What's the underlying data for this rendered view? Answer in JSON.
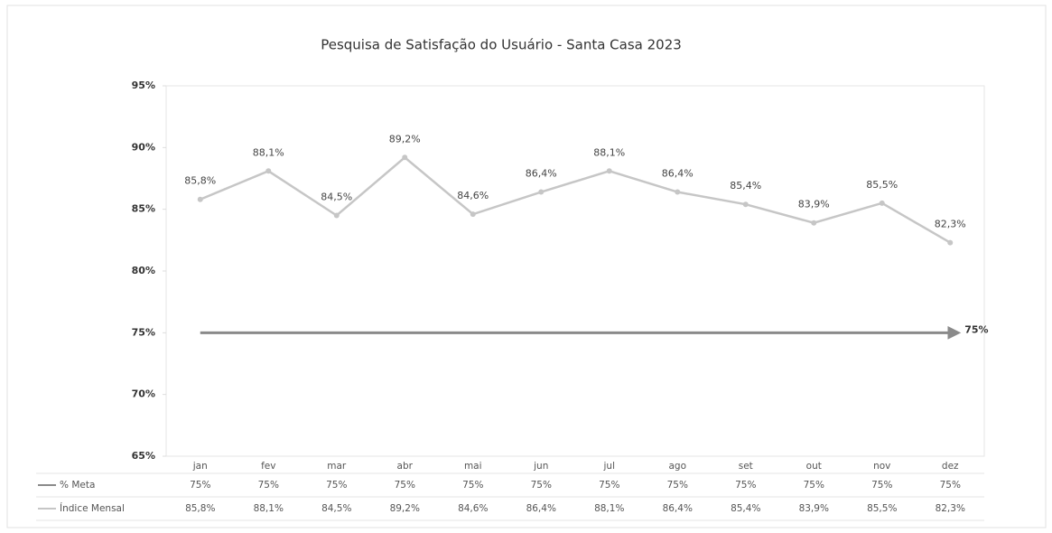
{
  "chart_data": {
    "type": "line",
    "title": "Pesquisa de Satisfação do Usuário - Santa Casa 2023",
    "categories": [
      "jan",
      "fev",
      "mar",
      "abr",
      "mai",
      "jun",
      "jul",
      "ago",
      "set",
      "out",
      "nov",
      "dez"
    ],
    "series": [
      {
        "name": "% Meta",
        "color": "#8a8a8a",
        "values": [
          75,
          75,
          75,
          75,
          75,
          75,
          75,
          75,
          75,
          75,
          75,
          75
        ],
        "value_labels": [
          "75%",
          "75%",
          "75%",
          "75%",
          "75%",
          "75%",
          "75%",
          "75%",
          "75%",
          "75%",
          "75%",
          "75%"
        ]
      },
      {
        "name": "Índice Mensal",
        "color": "#c6c6c6",
        "values": [
          85.8,
          88.1,
          84.5,
          89.2,
          84.6,
          86.4,
          88.1,
          86.4,
          85.4,
          83.9,
          85.5,
          82.3
        ],
        "value_labels": [
          "85,8%",
          "88,1%",
          "84,5%",
          "89,2%",
          "84,6%",
          "86,4%",
          "88,1%",
          "86,4%",
          "85,4%",
          "83,9%",
          "85,5%",
          "82,3%"
        ]
      }
    ],
    "ylim": [
      65,
      95
    ],
    "yticks": [
      {
        "value": 65,
        "label": "65%"
      },
      {
        "value": 70,
        "label": "70%"
      },
      {
        "value": 75,
        "label": "75%"
      },
      {
        "value": 80,
        "label": "80%"
      },
      {
        "value": 85,
        "label": "85%"
      },
      {
        "value": 90,
        "label": "90%"
      },
      {
        "value": 95,
        "label": "95%"
      }
    ]
  }
}
